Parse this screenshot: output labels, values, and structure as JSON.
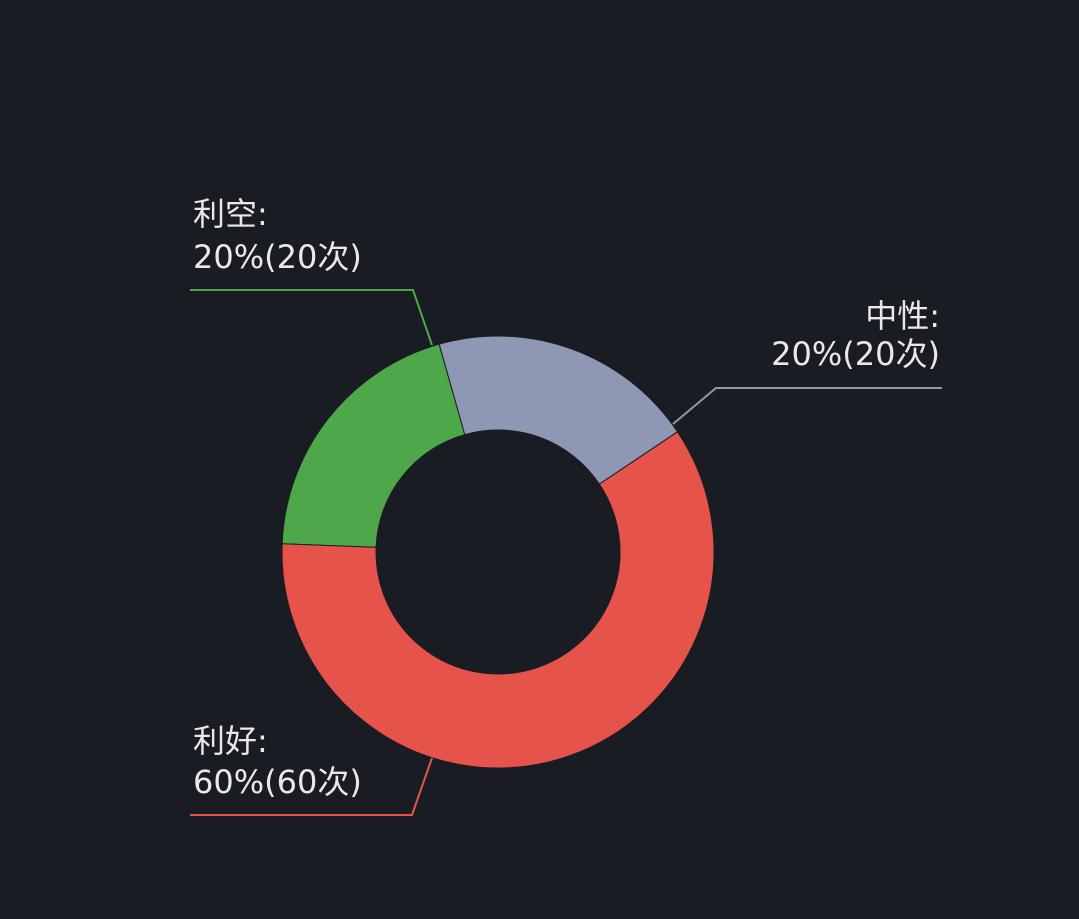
{
  "chart_data": {
    "type": "pie",
    "variant": "donut",
    "slices": [
      {
        "name": "利空",
        "percent": 20,
        "count": 20,
        "line1": "利空:",
        "line2": "20%(20次)",
        "color": "#4ea84a"
      },
      {
        "name": "中性",
        "percent": 20,
        "count": 20,
        "line1": "中性:",
        "line2": "20%(20次)",
        "color": "#8e98b4"
      },
      {
        "name": "利好",
        "percent": 60,
        "count": 60,
        "line1": "利好:",
        "line2": "60%(60次)",
        "color": "#e5534b"
      }
    ],
    "legend": "none",
    "background": "#1a1c23"
  }
}
